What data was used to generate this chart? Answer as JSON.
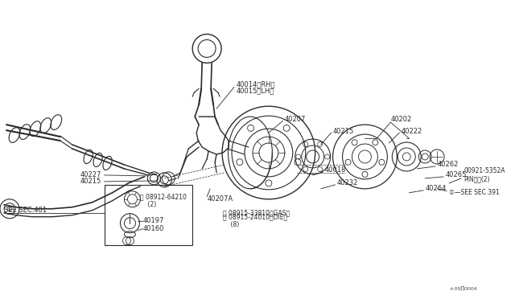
{
  "bg_color": "#ffffff",
  "fig_width": 6.4,
  "fig_height": 3.72,
  "dpi": 100,
  "line_color": "#2a2a2a",
  "font_size": 6.0,
  "labels": {
    "40014_RH": "40014〈RH〉",
    "40015_LH": "40015〈LH〉",
    "40207": "40207",
    "40202": "40202",
    "40222": "40222",
    "40215_l": "40215",
    "40227": "40227",
    "40215_r": "40215",
    "40262": "40262",
    "40265": "40265",
    "40264": "40264",
    "40018": "40018",
    "40232": "40232",
    "00921": "00921-5352A\nPINビ〉(2)",
    "see391": "①—SEE SEC.391",
    "N08912": "Ⓝ 08912-64210\n    (2)",
    "40197": "40197",
    "40160": "40160",
    "40207A": "40207A",
    "N08915a": "Ⓝ 08915-33810〈GAS〉",
    "N08915b": "Ⓝ 08915-24010〈DIE〉\n    (8)",
    "see401": "SEE SEC.401",
    "footnote": "∧·00∏0004"
  }
}
